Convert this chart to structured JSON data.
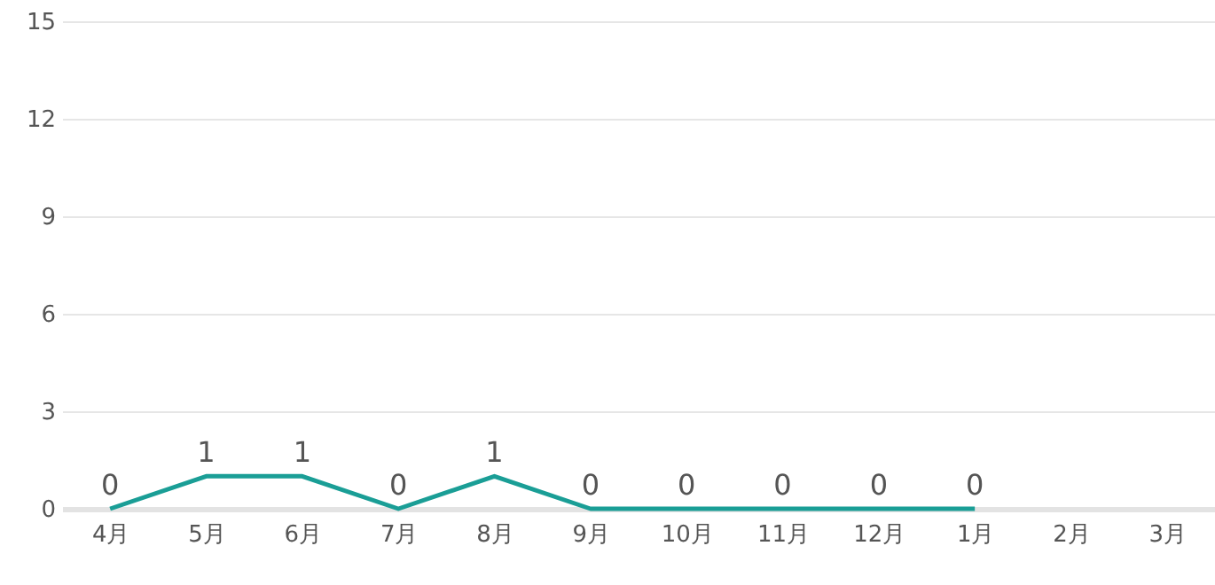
{
  "chart_data": {
    "type": "line",
    "categories": [
      "4月",
      "5月",
      "6月",
      "7月",
      "8月",
      "9月",
      "10月",
      "11月",
      "12月",
      "1月",
      "2月",
      "3月"
    ],
    "series": [
      {
        "color": "#1a9e96",
        "values": [
          0,
          1,
          1,
          0,
          1,
          0,
          0,
          0,
          0,
          0,
          null,
          null
        ]
      }
    ],
    "ylim": [
      0,
      15
    ],
    "yticks": [
      0,
      3,
      6,
      9,
      12,
      15
    ],
    "grid": "y",
    "data_labels": true,
    "marker": "none",
    "line_style": "solid"
  }
}
